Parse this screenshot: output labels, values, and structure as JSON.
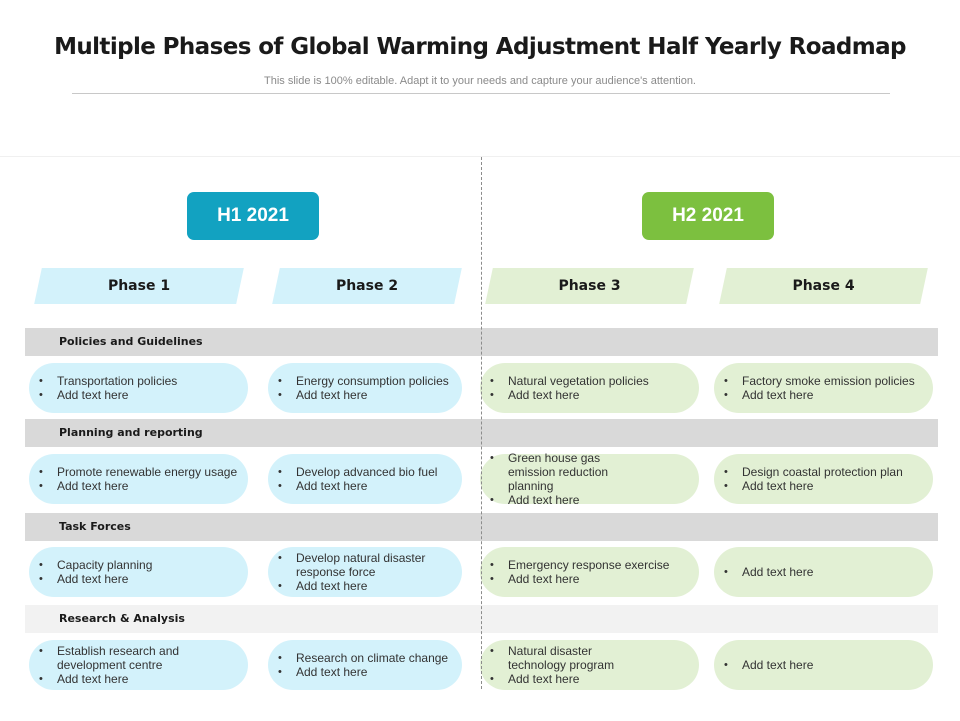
{
  "slide": {
    "title": "Multiple Phases of Global Warming Adjustment Half Yearly Roadmap",
    "subtitle": "This slide is 100% editable. Adapt it to your needs and capture your audience's attention."
  },
  "halves": [
    {
      "label": "H1 2021",
      "color": "#12a2c1"
    },
    {
      "label": "H2 2021",
      "color": "#7cc03f"
    }
  ],
  "phases": [
    "Phase 1",
    "Phase 2",
    "Phase 3",
    "Phase 4"
  ],
  "sections": [
    {
      "title": "Policies and Guidelines",
      "cells": [
        [
          "Transportation policies",
          "Add text here"
        ],
        [
          "Energy consumption policies",
          "Add text here"
        ],
        [
          "Natural vegetation policies",
          "Add text here"
        ],
        [
          "Factory smoke emission policies",
          "Add text here"
        ]
      ]
    },
    {
      "title": "Planning and reporting",
      "cells": [
        [
          "Promote renewable energy usage",
          "Add text here"
        ],
        [
          "Develop advanced bio fuel",
          "Add text here"
        ],
        [
          "Green house gas emission reduction planning",
          "Add text here"
        ],
        [
          "Design coastal protection plan",
          "Add text here"
        ]
      ]
    },
    {
      "title": "Task Forces",
      "cells": [
        [
          "Capacity planning",
          "Add text here"
        ],
        [
          "Develop natural disaster response force",
          "Add text here"
        ],
        [
          "Emergency response exercise",
          "Add text here"
        ],
        [
          "Add text here"
        ]
      ]
    },
    {
      "title": "Research & Analysis",
      "cells": [
        [
          "Establish research and development centre",
          "Add text here"
        ],
        [
          "Research on climate change",
          "Add text here"
        ],
        [
          "Natural disaster technology program",
          "Add text here"
        ],
        [
          "Add text here"
        ]
      ]
    }
  ],
  "colors": {
    "blue_accent": "#12a2c1",
    "green_accent": "#7cc03f",
    "blue_fill": "#d3f2fb",
    "green_fill": "#e2f0d4"
  }
}
